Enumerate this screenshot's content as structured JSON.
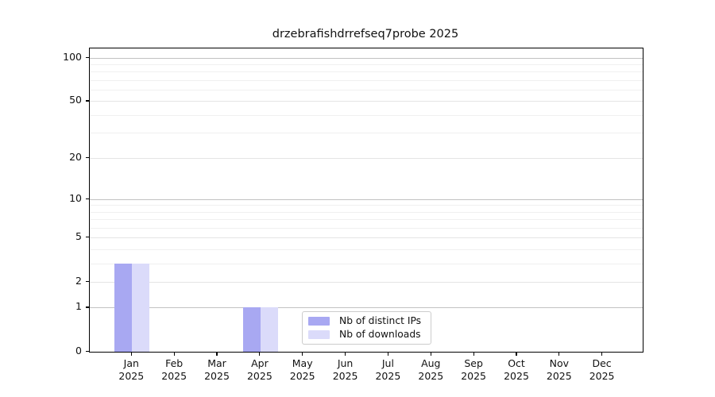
{
  "title": "drzebrafishdrrefseq7probe 2025",
  "chart_data": {
    "type": "bar",
    "title": "drzebrafishdrrefseq7probe 2025",
    "categories": [
      "Jan",
      "Feb",
      "Mar",
      "Apr",
      "May",
      "Jun",
      "Jul",
      "Aug",
      "Sep",
      "Oct",
      "Nov",
      "Dec"
    ],
    "category_year": "2025",
    "series": [
      {
        "name": "Nb of distinct IPs",
        "color": "#a8a8f2",
        "values": [
          3,
          0,
          0,
          1,
          0,
          0,
          0,
          0,
          0,
          0,
          0,
          0
        ]
      },
      {
        "name": "Nb of downloads",
        "color": "#dbdbfa",
        "values": [
          3,
          0,
          0,
          1,
          0,
          0,
          0,
          0,
          0,
          0,
          0,
          0
        ]
      }
    ],
    "xlabel": "",
    "ylabel": "",
    "y_axis": {
      "scale": "log1p",
      "ticks": [
        0,
        1,
        2,
        5,
        10,
        20,
        50,
        100
      ],
      "major_gridlines": [
        1,
        10,
        100
      ],
      "mid_gridlines": [
        2,
        5,
        20,
        50
      ],
      "minor_gridlines": [
        3,
        4,
        6,
        7,
        8,
        9,
        30,
        40,
        60,
        70,
        80,
        90
      ],
      "ylim": [
        0,
        114
      ]
    },
    "legend": {
      "position": "lower center"
    },
    "grid": true
  },
  "colors": {
    "bar_distinct_ips": "#a8a8f2",
    "bar_downloads": "#dbdbfa",
    "grid_major": "#c2c2c2",
    "grid_mid": "#e4e4e4",
    "grid_minor": "#f0f0f0",
    "axis": "#000000",
    "legend_border": "#cccccc"
  }
}
